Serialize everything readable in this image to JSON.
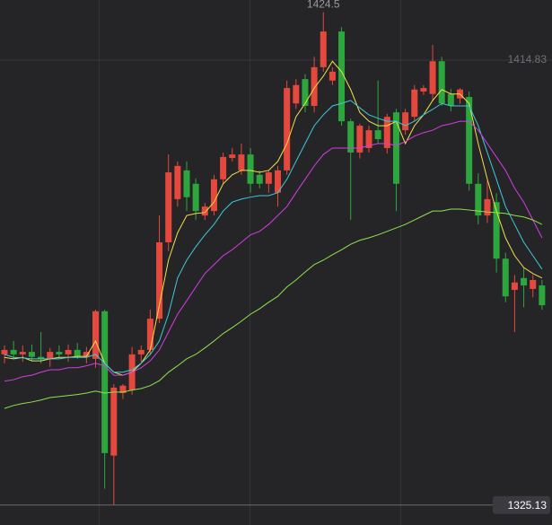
{
  "chart_data": {
    "type": "candlestick",
    "up_color": "#e5483c",
    "down_color": "#2ea63e",
    "ylim": [
      1321.1,
      1426.95
    ],
    "yticks": [
      1414.83
    ],
    "grid": true,
    "max_label": 1424.5,
    "min_label": 1325.13,
    "open": [
      1355.5,
      1356.4,
      1355.5,
      1356.0,
      1355.0,
      1354.6,
      1356.0,
      1355.5,
      1356.4,
      1355.0,
      1354.6,
      1364.2,
      1335.1,
      1347.7,
      1348.3,
      1355.5,
      1356.4,
      1362.7,
      1378.1,
      1386.8,
      1392.6,
      1389.9,
      1383.5,
      1384.4,
      1390.8,
      1395.1,
      1392.6,
      1395.8,
      1391.7,
      1389.9,
      1388.1,
      1392.6,
      1406.1,
      1411.0,
      1405.6,
      1413.4,
      1410.7,
      1420.6,
      1402.5,
      1396.2,
      1397.1,
      1400.7,
      1397.1,
      1404.3,
      1400.7,
      1403.4,
      1408.5,
      1408.0,
      1414.6,
      1408.0,
      1407.1,
      1407.4,
      1389.9,
      1383.5,
      1386.2,
      1374.8,
      1368.5,
      1370.9,
      1368.7,
      1369.4
    ],
    "high": [
      1357.3,
      1358.2,
      1357.3,
      1357.5,
      1360.0,
      1356.8,
      1357.3,
      1357.5,
      1357.8,
      1357.0,
      1364.5,
      1364.5,
      1349.5,
      1349.5,
      1357.0,
      1357.3,
      1364.5,
      1383.5,
      1395.8,
      1394.4,
      1394.4,
      1391.0,
      1386.0,
      1391.7,
      1396.2,
      1397.1,
      1398.0,
      1397.1,
      1392.6,
      1392.6,
      1393.5,
      1410.7,
      1411.0,
      1412.0,
      1415.5,
      1424.5,
      1413.4,
      1421.5,
      1403.0,
      1402.0,
      1401.6,
      1410.7,
      1404.0,
      1405.0,
      1405.0,
      1409.8,
      1409.8,
      1417.9,
      1415.5,
      1409.0,
      1409.2,
      1408.5,
      1392.0,
      1390.5,
      1388.0,
      1376.0,
      1371.5,
      1373.0,
      1371.5,
      1370.5
    ],
    "low": [
      1353.7,
      1354.6,
      1354.0,
      1354.2,
      1353.7,
      1353.0,
      1354.6,
      1354.0,
      1354.6,
      1353.7,
      1352.8,
      1328.4,
      1325.13,
      1346.5,
      1347.4,
      1354.0,
      1355.5,
      1361.8,
      1376.3,
      1385.3,
      1384.4,
      1382.6,
      1382.6,
      1383.5,
      1389.9,
      1394.4,
      1391.7,
      1388.1,
      1389.0,
      1388.1,
      1385.3,
      1391.7,
      1405.0,
      1404.3,
      1404.3,
      1412.5,
      1409.8,
      1401.6,
      1382.6,
      1395.0,
      1396.2,
      1398.0,
      1396.0,
      1384.4,
      1399.8,
      1402.5,
      1407.8,
      1406.5,
      1405.6,
      1404.5,
      1406.0,
      1388.5,
      1381.7,
      1382.0,
      1372.0,
      1366.0,
      1360.0,
      1365.0,
      1367.0,
      1364.5
    ],
    "close": [
      1356.4,
      1355.5,
      1356.0,
      1355.0,
      1354.6,
      1356.0,
      1355.5,
      1356.4,
      1355.0,
      1356.0,
      1364.2,
      1335.6,
      1348.8,
      1349.2,
      1355.5,
      1356.4,
      1362.7,
      1378.1,
      1392.2,
      1393.5,
      1387.2,
      1384.4,
      1385.3,
      1390.8,
      1395.3,
      1395.8,
      1395.8,
      1389.9,
      1389.9,
      1392.2,
      1392.6,
      1409.2,
      1409.8,
      1405.6,
      1413.4,
      1420.6,
      1412.5,
      1402.5,
      1396.2,
      1401.6,
      1400.7,
      1398.9,
      1403.4,
      1389.9,
      1404.3,
      1408.9,
      1409.2,
      1414.6,
      1406.1,
      1405.6,
      1408.9,
      1389.9,
      1383.5,
      1386.8,
      1374.8,
      1367.2,
      1370.0,
      1369.4,
      1370.5,
      1365.4
    ],
    "series": [
      {
        "color": "#f2e04a",
        "values": [
          1354.9,
          1354.6,
          1354.9,
          1354.2,
          1354.2,
          1354.6,
          1354.9,
          1354.9,
          1355.1,
          1355.1,
          1358.2,
          1353.7,
          1351.9,
          1351.3,
          1351.9,
          1353.7,
          1356.4,
          1365.4,
          1374.5,
          1380.0,
          1383.5,
          1383.9,
          1384.1,
          1386.2,
          1389.9,
          1391.7,
          1392.6,
          1392.6,
          1392.2,
          1392.6,
          1394.4,
          1398.0,
          1403.4,
          1406.1,
          1409.2,
          1411.6,
          1414.6,
          1412.5,
          1408.9,
          1404.3,
          1402.5,
          1401.6,
          1401.6,
          1402.5,
          1398.0,
          1401.6,
          1403.8,
          1406.7,
          1408.9,
          1408.0,
          1408.0,
          1406.1,
          1398.0,
          1390.8,
          1384.4,
          1379.0,
          1375.4,
          1373.0,
          1371.8,
          1370.9
        ]
      },
      {
        "color": "#3ccbd8",
        "values": [
          1355.5,
          1354.9,
          1354.8,
          1354.6,
          1354.6,
          1354.6,
          1354.6,
          1354.9,
          1354.9,
          1354.9,
          1355.5,
          1353.7,
          1351.9,
          1351.9,
          1352.4,
          1353.7,
          1355.5,
          1358.2,
          1363.6,
          1370.9,
          1374.5,
          1377.2,
          1379.6,
          1381.7,
          1384.4,
          1386.2,
          1386.8,
          1387.2,
          1387.5,
          1387.5,
          1388.1,
          1390.8,
          1394.4,
          1398.0,
          1401.6,
          1403.8,
          1405.6,
          1406.1,
          1406.7,
          1405.2,
          1403.8,
          1403.1,
          1402.5,
          1402.5,
          1401.6,
          1402.5,
          1403.8,
          1404.9,
          1406.1,
          1405.6,
          1405.6,
          1405.6,
          1401.6,
          1396.2,
          1390.8,
          1385.3,
          1381.7,
          1378.1,
          1375.4,
          1372.7
        ]
      },
      {
        "color": "#d43de2",
        "values": [
          1350.1,
          1350.4,
          1351.0,
          1351.3,
          1351.9,
          1352.4,
          1352.4,
          1352.8,
          1352.8,
          1353.2,
          1353.7,
          1353.2,
          1351.3,
          1351.3,
          1351.9,
          1352.8,
          1354.2,
          1356.4,
          1360.0,
          1363.6,
          1366.3,
          1369.1,
          1371.8,
          1373.6,
          1375.4,
          1376.6,
          1378.1,
          1379.6,
          1380.3,
          1381.7,
          1383.5,
          1385.3,
          1388.1,
          1390.8,
          1393.5,
          1395.8,
          1397.1,
          1397.1,
          1397.1,
          1397.1,
          1397.6,
          1398.0,
          1398.0,
          1397.6,
          1398.4,
          1399.5,
          1400.2,
          1400.7,
          1401.6,
          1402.0,
          1402.5,
          1402.5,
          1400.7,
          1398.0,
          1395.3,
          1392.6,
          1389.0,
          1386.2,
          1382.6,
          1379.0
        ]
      },
      {
        "color": "#8fe34c",
        "values": [
          1344.6,
          1345.2,
          1345.6,
          1345.9,
          1346.3,
          1346.8,
          1347.0,
          1347.2,
          1347.4,
          1347.7,
          1348.1,
          1347.7,
          1347.9,
          1347.9,
          1348.3,
          1348.6,
          1349.2,
          1350.2,
          1351.9,
          1353.2,
          1354.6,
          1355.5,
          1356.8,
          1358.2,
          1359.7,
          1360.9,
          1362.2,
          1363.6,
          1364.7,
          1366.0,
          1367.2,
          1369.1,
          1370.5,
          1372.1,
          1373.6,
          1374.5,
          1375.6,
          1376.6,
          1377.7,
          1378.5,
          1379.0,
          1379.6,
          1380.3,
          1381.0,
          1381.7,
          1382.6,
          1383.5,
          1384.4,
          1384.4,
          1384.8,
          1384.8,
          1384.6,
          1384.4,
          1384.2,
          1384.1,
          1383.9,
          1383.5,
          1383.2,
          1382.6,
          1381.7
        ]
      }
    ]
  }
}
